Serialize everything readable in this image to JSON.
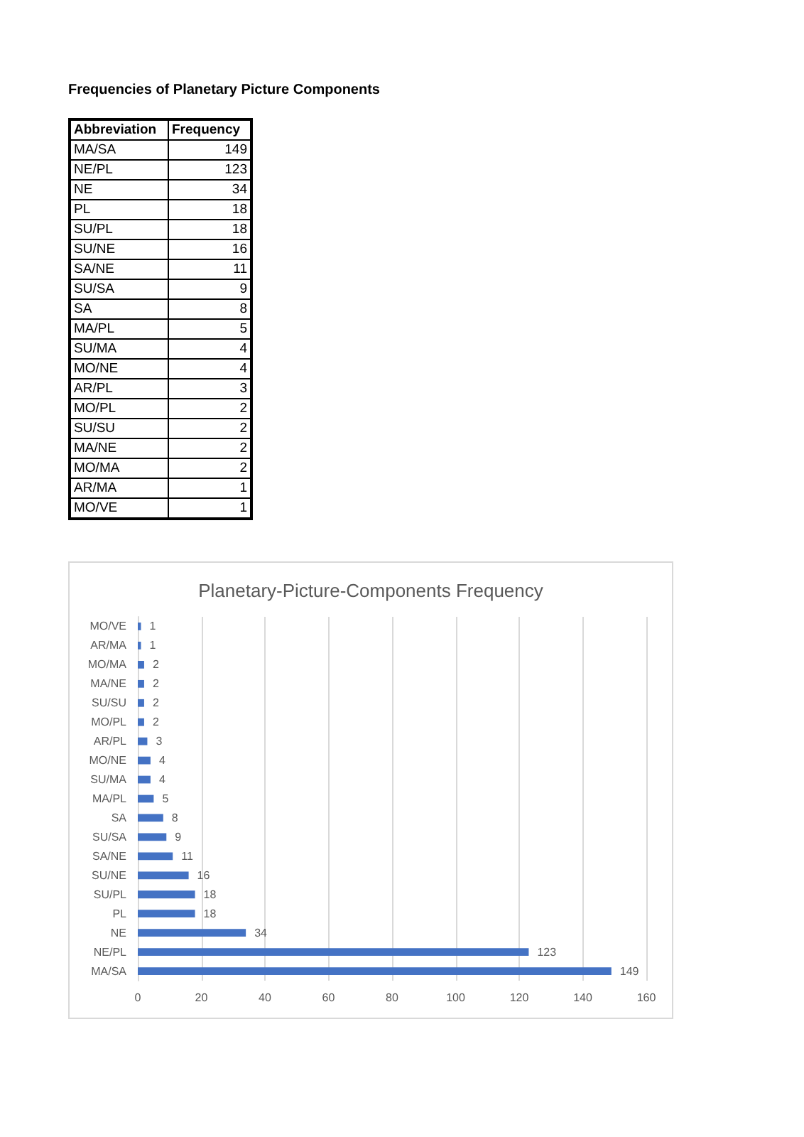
{
  "chart_data": [
    {
      "type": "other",
      "title": "Frequencies of Planetary Picture Components",
      "xlabel": "Abbreviation",
      "ylabel": "Frequency",
      "data_labels": true,
      "categories": [
        "MA/SA",
        "NE/PL",
        "NE",
        "PL",
        "SU/PL",
        "SU/NE",
        "SA/NE",
        "SU/SA",
        "SA",
        "MA/PL",
        "SU/MA",
        "MO/NE",
        "AR/PL",
        "MO/PL",
        "SU/SU",
        "MA/NE",
        "MO/MA",
        "AR/MA",
        "MO/VE"
      ],
      "values": [
        149,
        123,
        34,
        18,
        18,
        16,
        11,
        9,
        8,
        5,
        4,
        4,
        3,
        2,
        2,
        2,
        2,
        1,
        1
      ]
    },
    {
      "type": "bar",
      "orientation": "horizontal",
      "title": "Planetary-Picture-Components Frequency",
      "categories": [
        "MO/VE",
        "AR/MA",
        "MO/MA",
        "MA/NE",
        "SU/SU",
        "MO/PL",
        "AR/PL",
        "MO/NE",
        "SU/MA",
        "MA/PL",
        "SA",
        "SU/SA",
        "SA/NE",
        "SU/NE",
        "SU/PL",
        "PL",
        "NE",
        "NE/PL",
        "MA/SA"
      ],
      "values": [
        1,
        1,
        2,
        2,
        2,
        2,
        3,
        4,
        4,
        5,
        8,
        9,
        11,
        16,
        18,
        18,
        34,
        123,
        149
      ],
      "color": "#4472c4",
      "xlim": [
        0,
        160
      ],
      "xticks": [
        0,
        20,
        40,
        60,
        80,
        100,
        120,
        140,
        160
      ],
      "grid": "x",
      "data_labels": true
    }
  ]
}
